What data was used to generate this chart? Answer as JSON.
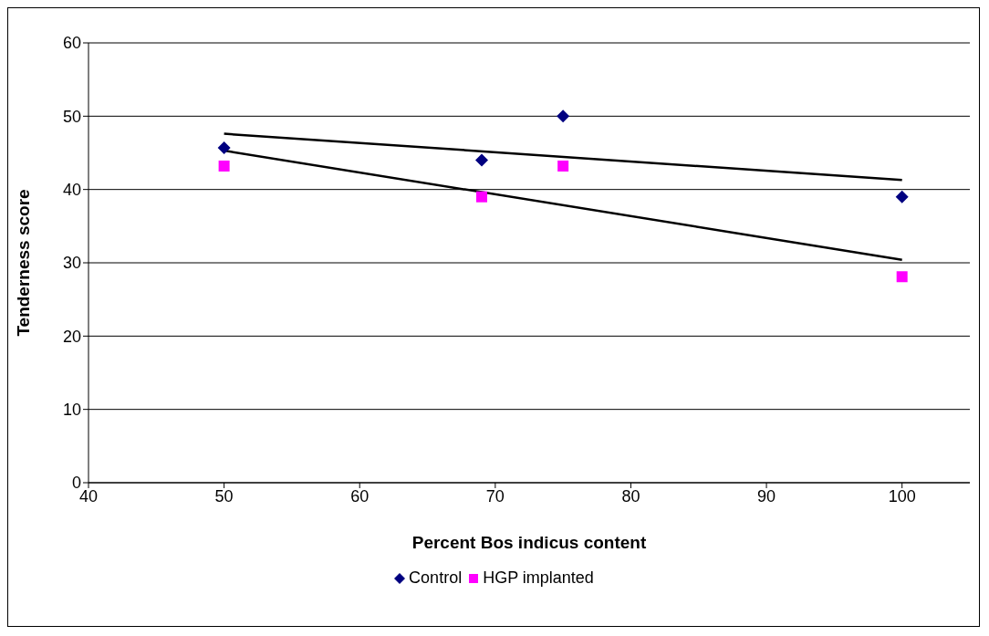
{
  "chart_data": {
    "type": "scatter",
    "xlabel": "Percent Bos indicus content",
    "ylabel": "Tenderness score",
    "xlim": [
      40,
      105
    ],
    "xticks": [
      40,
      50,
      60,
      70,
      80,
      90,
      100
    ],
    "ylim": [
      0,
      60
    ],
    "yticks": [
      0,
      10,
      20,
      30,
      40,
      50,
      60
    ],
    "grid": "y",
    "legend": "bottom",
    "series": [
      {
        "name": "Control",
        "color": "#000080",
        "marker": "diamond",
        "x": [
          50,
          69,
          75,
          100
        ],
        "values": [
          45.7,
          44,
          50,
          39
        ]
      },
      {
        "name": "HGP implanted",
        "color": "#ff00ff",
        "marker": "square",
        "x": [
          50,
          69,
          75,
          100
        ],
        "values": [
          43.2,
          39,
          43.2,
          28.1
        ]
      },
      {
        "type": "line",
        "color": "#000000",
        "marker": "none",
        "x": [
          50,
          100
        ],
        "values": [
          47.6,
          41.3
        ]
      },
      {
        "type": "line",
        "color": "#000000",
        "marker": "none",
        "x": [
          50,
          100
        ],
        "values": [
          45.3,
          30.4
        ]
      }
    ]
  }
}
